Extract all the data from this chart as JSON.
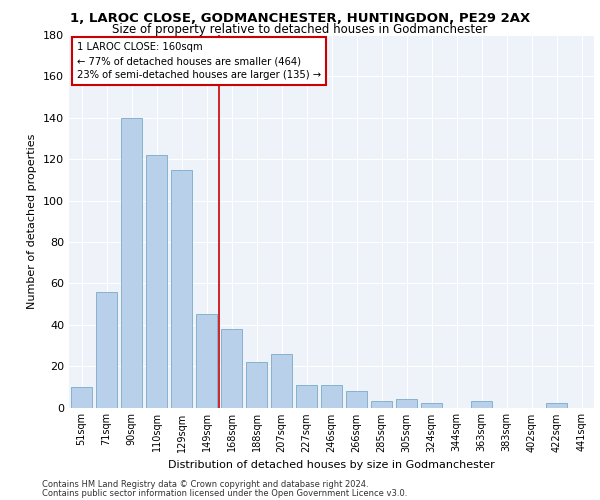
{
  "title_line1": "1, LAROC CLOSE, GODMANCHESTER, HUNTINGDON, PE29 2AX",
  "title_line2": "Size of property relative to detached houses in Godmanchester",
  "xlabel": "Distribution of detached houses by size in Godmanchester",
  "ylabel": "Number of detached properties",
  "categories": [
    "51sqm",
    "71sqm",
    "90sqm",
    "110sqm",
    "129sqm",
    "149sqm",
    "168sqm",
    "188sqm",
    "207sqm",
    "227sqm",
    "246sqm",
    "266sqm",
    "285sqm",
    "305sqm",
    "324sqm",
    "344sqm",
    "363sqm",
    "383sqm",
    "402sqm",
    "422sqm",
    "441sqm"
  ],
  "values": [
    10,
    56,
    140,
    122,
    115,
    45,
    38,
    22,
    26,
    11,
    11,
    8,
    3,
    4,
    2,
    0,
    3,
    0,
    0,
    2,
    0
  ],
  "bar_color": "#b8d0ea",
  "bar_edge_color": "#7aaac8",
  "ylim": [
    0,
    180
  ],
  "yticks": [
    0,
    20,
    40,
    60,
    80,
    100,
    120,
    140,
    160,
    180
  ],
  "vline_x": 5.5,
  "vline_color": "#cc0000",
  "annotation_box_edge": "#cc0000",
  "annotation_line1": "1 LAROC CLOSE: 160sqm",
  "annotation_line2": "← 77% of detached houses are smaller (464)",
  "annotation_line3": "23% of semi-detached houses are larger (135) →",
  "background_color": "#eef2f9",
  "footer_line1": "Contains HM Land Registry data © Crown copyright and database right 2024.",
  "footer_line2": "Contains public sector information licensed under the Open Government Licence v3.0."
}
